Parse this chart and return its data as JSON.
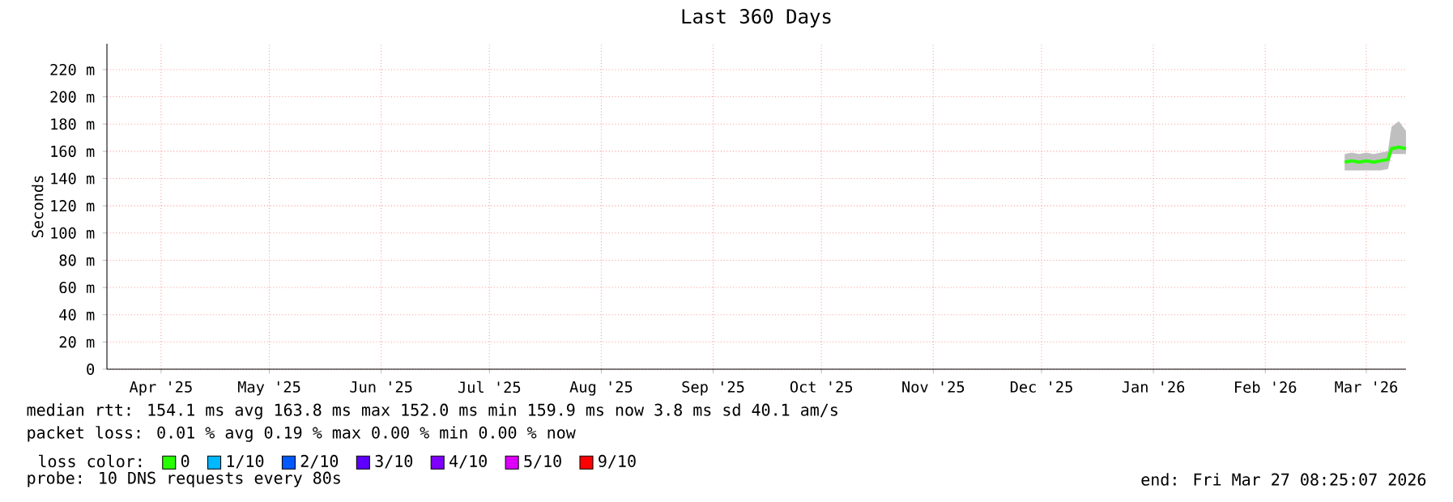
{
  "chart_data": {
    "type": "line",
    "title": "Last 360 Days",
    "ylabel": "Seconds",
    "legend_title": "loss color:",
    "legend": "bottom left",
    "grid": true,
    "x": [
      "2026-03-10",
      "2026-03-12",
      "2026-03-14",
      "2026-03-16",
      "2026-03-18",
      "2026-03-20",
      "2026-03-22",
      "2026-03-23",
      "2026-03-25",
      "2026-03-27"
    ],
    "series": [
      {
        "name": "0",
        "color": "#26ff00",
        "values": [
          152,
          153,
          152,
          153,
          152,
          153,
          154,
          162,
          163,
          162
        ],
        "lower": [
          146,
          146,
          146,
          146,
          146,
          146,
          147,
          158,
          158,
          158
        ],
        "upper": [
          158,
          159,
          158,
          159,
          158,
          159,
          160,
          178,
          182,
          175
        ]
      },
      {
        "name": "1/10",
        "color": "#00b8ff",
        "values": [
          null,
          null,
          null,
          null,
          null,
          null,
          null,
          null,
          null,
          null
        ]
      },
      {
        "name": "2/10",
        "color": "#0059ff",
        "values": [
          null,
          null,
          null,
          null,
          null,
          null,
          null,
          null,
          null,
          null
        ]
      },
      {
        "name": "3/10",
        "color": "#5e00ff",
        "values": [
          null,
          null,
          null,
          null,
          null,
          null,
          null,
          null,
          null,
          null
        ]
      },
      {
        "name": "4/10",
        "color": "#7e00ff",
        "values": [
          null,
          null,
          null,
          null,
          null,
          null,
          null,
          null,
          null,
          null
        ]
      },
      {
        "name": "5/10",
        "color": "#dd00ff",
        "values": [
          null,
          null,
          null,
          null,
          null,
          null,
          null,
          null,
          null,
          null
        ]
      },
      {
        "name": "9/10",
        "color": "#ff0000",
        "values": [
          null,
          null,
          null,
          null,
          null,
          null,
          null,
          null,
          null,
          null
        ]
      }
    ],
    "xlim": [
      "2025-04-01",
      "2026-03-27"
    ],
    "xticks": [
      {
        "value": "2025-04-16",
        "label": "Apr '25"
      },
      {
        "value": "2025-05-16",
        "label": "May '25"
      },
      {
        "value": "2025-06-16",
        "label": "Jun '25"
      },
      {
        "value": "2025-07-16",
        "label": "Jul '25"
      },
      {
        "value": "2025-08-16",
        "label": "Aug '25"
      },
      {
        "value": "2025-09-16",
        "label": "Sep '25"
      },
      {
        "value": "2025-10-16",
        "label": "Oct '25"
      },
      {
        "value": "2025-11-16",
        "label": "Nov '25"
      },
      {
        "value": "2025-12-16",
        "label": "Dec '25"
      },
      {
        "value": "2026-01-16",
        "label": "Jan '26"
      },
      {
        "value": "2026-02-16",
        "label": "Feb '26"
      },
      {
        "value": "2026-03-16",
        "label": "Mar '26"
      }
    ],
    "ylim": [
      0,
      239
    ],
    "yticks": [
      0,
      {
        "value": 20,
        "label": "20 m"
      },
      {
        "value": 40,
        "label": "40 m"
      },
      {
        "value": 60,
        "label": "60 m"
      },
      {
        "value": 80,
        "label": "80 m"
      },
      {
        "value": 100,
        "label": "100 m"
      },
      {
        "value": 120,
        "label": "120 m"
      },
      {
        "value": 140,
        "label": "140 m"
      },
      {
        "value": 160,
        "label": "160 m"
      },
      {
        "value": 180,
        "label": "180 m"
      },
      {
        "value": 200,
        "label": "200 m"
      },
      {
        "value": 220,
        "label": "220 m"
      }
    ],
    "annotations": [
      "median rtt:  154.1 ms avg  163.8 ms max  152.0 ms min  159.9 ms now  3.8 ms sd  40.1   am/s",
      "packet loss: 0.01 % avg  0.19 % max  0.00 % min  0.00 % now",
      "probe:       10 DNS requests every 80s",
      "end: Fri Mar 27 08:25:07 2026"
    ]
  }
}
